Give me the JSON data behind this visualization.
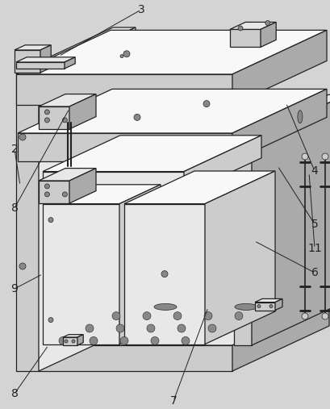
{
  "bg": "#d4d4d4",
  "lc": "#222222",
  "white": "#f8f8f8",
  "light": "#e8e8e8",
  "mid": "#cccccc",
  "dark": "#aaaaaa",
  "darker": "#888888",
  "figsize": [
    4.09,
    5.07
  ],
  "dpi": 100
}
